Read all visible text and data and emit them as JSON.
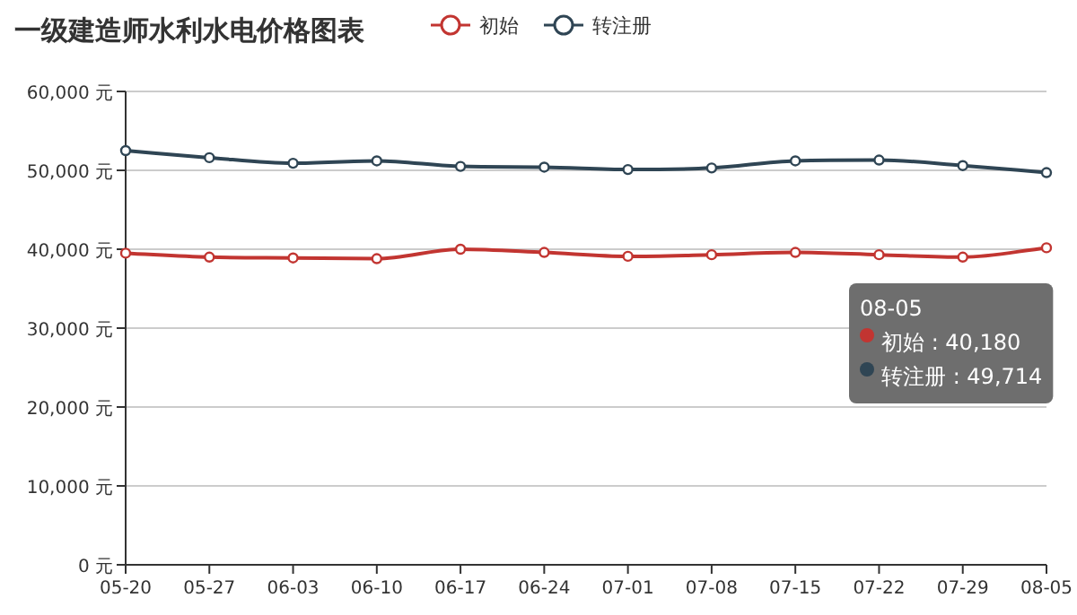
{
  "chart_data": {
    "type": "line",
    "title": "一级建造师水利水电价格图表",
    "categories": [
      "05-20",
      "05-27",
      "06-03",
      "06-10",
      "06-17",
      "06-24",
      "07-01",
      "07-08",
      "07-15",
      "07-22",
      "07-29",
      "08-05"
    ],
    "series": [
      {
        "name": "初始",
        "color": "#c23531",
        "values": [
          39500,
          39000,
          38900,
          38800,
          40000,
          39600,
          39100,
          39300,
          39600,
          39300,
          39000,
          40180
        ]
      },
      {
        "name": "转注册",
        "color": "#2f4554",
        "values": [
          52500,
          51600,
          50900,
          51200,
          50500,
          50400,
          50100,
          50300,
          51200,
          51300,
          50600,
          49714
        ]
      }
    ],
    "ylim": [
      0,
      60000
    ],
    "yticks": [
      {
        "value": 0,
        "label": "0 元"
      },
      {
        "value": 10000,
        "label": "10,000 元"
      },
      {
        "value": 20000,
        "label": "20,000 元"
      },
      {
        "value": 30000,
        "label": "30,000 元"
      },
      {
        "value": 40000,
        "label": "40,000 元"
      },
      {
        "value": 50000,
        "label": "50,000 元"
      },
      {
        "value": 60000,
        "label": "60,000 元"
      }
    ],
    "grid": "y",
    "legend": "top",
    "marker": "circle",
    "line_style": "solid",
    "annotations": [
      "08-05",
      "初始 : 40,180",
      "转注册 : 49,714"
    ]
  }
}
